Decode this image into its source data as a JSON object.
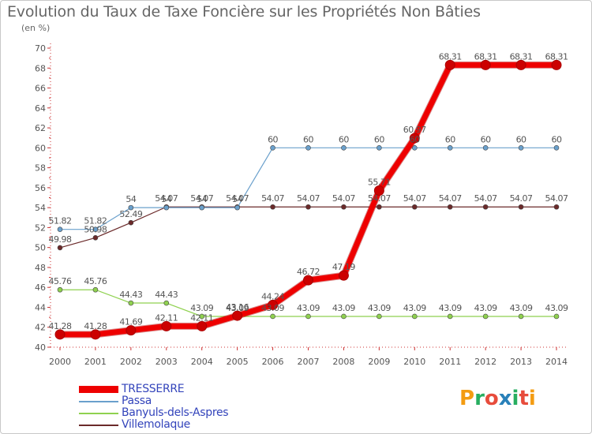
{
  "header": {
    "title": "Evolution du Taux de Taxe Foncière sur les Propriétés Non Bâties",
    "unit": "(en %)"
  },
  "logo": {
    "text": "Proxiti",
    "colors": [
      "#f39c12",
      "#27ae60",
      "#e74c3c",
      "#2980b9",
      "#27ae60",
      "#e74c3c",
      "#f39c12"
    ]
  },
  "chart_data": {
    "type": "line",
    "title": "Evolution du Taux de Taxe Foncière sur les Propriétés Non Bâties",
    "ylabel": "(en %)",
    "xlabel": "",
    "x": [
      "2000",
      "2001",
      "2002",
      "2003",
      "2004",
      "2005",
      "2006",
      "2007",
      "2008",
      "2009",
      "2010",
      "2011",
      "2012",
      "2013",
      "2014"
    ],
    "ylim": [
      40,
      70
    ],
    "yticks": [
      40,
      42,
      44,
      46,
      48,
      50,
      52,
      54,
      56,
      58,
      60,
      62,
      64,
      66,
      68,
      70
    ],
    "grid": false,
    "legend": "bottom-left",
    "series": [
      {
        "name": "Villemolaque",
        "color": "#6b2a2a",
        "width": 1.2,
        "marker": 3,
        "values": [
          49.98,
          50.98,
          52.49,
          54.07,
          54.07,
          54.07,
          54.07,
          54.07,
          54.07,
          54.07,
          54.07,
          54.07,
          54.07,
          54.07,
          54.07
        ],
        "labels": [
          "49.98",
          "50.98",
          "52.49",
          "54.07",
          "54.07",
          "54.07",
          "54.07",
          "54.07",
          "54.07",
          "54.07",
          "54.07",
          "54.07",
          "54.07",
          "54.07",
          "54.07"
        ]
      },
      {
        "name": "Banyuls-dels-Aspres",
        "color": "#8fd14f",
        "width": 1.2,
        "marker": 3,
        "values": [
          45.76,
          45.76,
          44.43,
          44.43,
          43.09,
          43.09,
          43.09,
          43.09,
          43.09,
          43.09,
          43.09,
          43.09,
          43.09,
          43.09,
          43.09
        ],
        "labels": [
          "45.76",
          "45.76",
          "44.43",
          "44.43",
          "43.09",
          "43.09",
          "43.09",
          "43.09",
          "43.09",
          "43.09",
          "43.09",
          "43.09",
          "43.09",
          "43.09",
          "43.09"
        ]
      },
      {
        "name": "Passa",
        "color": "#6aa0cc",
        "width": 1.2,
        "marker": 3,
        "values": [
          51.82,
          51.82,
          54,
          54,
          54,
          54,
          60,
          60,
          60,
          60,
          60,
          60,
          60,
          60,
          60
        ],
        "labels": [
          "51.82",
          "51.82",
          "54",
          "54",
          "54",
          "54",
          "60",
          "60",
          "60",
          "60",
          "60",
          "60",
          "60",
          "60",
          "60"
        ]
      },
      {
        "name": "TRESSERRE",
        "color": "#ee0000",
        "width": 7,
        "marker": 6,
        "values": [
          41.28,
          41.28,
          41.69,
          42.11,
          42.11,
          43.16,
          44.24,
          46.72,
          47.19,
          55.71,
          60.97,
          68.31,
          68.31,
          68.31,
          68.31
        ],
        "labels": [
          "41.28",
          "41.28",
          "41.69",
          "42.11",
          "42.11",
          "43.16",
          "44.24",
          "46.72",
          "47.19",
          "55.71",
          "60.97",
          "68.31",
          "68.31",
          "68.31",
          "68.31"
        ]
      }
    ]
  }
}
